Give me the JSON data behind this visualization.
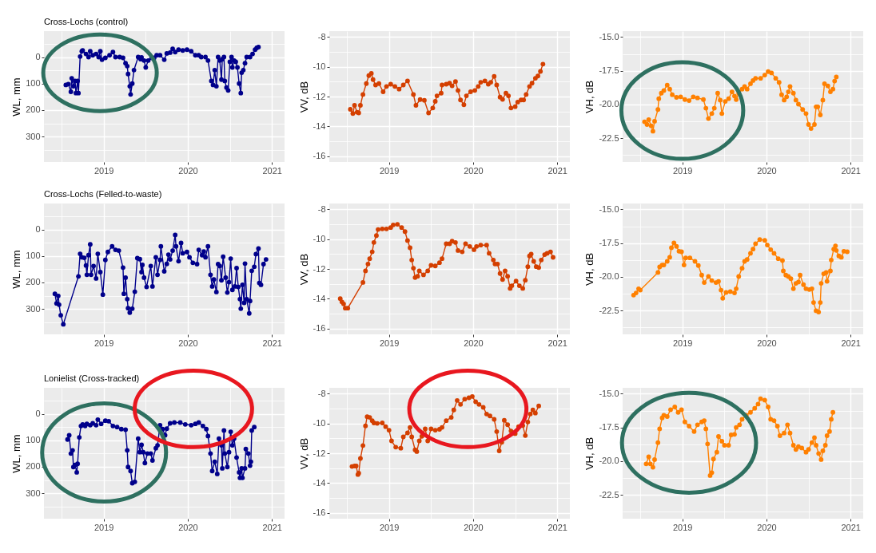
{
  "chart_data": [
    {
      "type": "line",
      "title": "Cross-Lochs (control)",
      "ylabel": "WL, mm",
      "marker": "circle",
      "line_style": "solid",
      "grid": true,
      "xlim": [
        2018.29,
        2021.15
      ],
      "xticks": [
        {
          "value": 2018.5,
          "label": null
        },
        2019,
        {
          "value": 2019.5,
          "label": null
        },
        2020,
        {
          "value": 2020.5,
          "label": null
        },
        2021
      ],
      "ylim": [
        396,
        -98
      ],
      "yticks": [
        {
          "value": -50,
          "label": null
        },
        0,
        {
          "value": 50,
          "label": null
        },
        100,
        {
          "value": 150,
          "label": null
        },
        200,
        {
          "value": 250,
          "label": null
        },
        300,
        {
          "value": 350,
          "label": null
        }
      ],
      "x": [
        2018.55,
        2018.58,
        2018.61,
        2018.62,
        2018.64,
        2018.66,
        2018.67,
        2018.69,
        2018.7,
        2018.72,
        2018.74,
        2018.75,
        2018.79,
        2018.82,
        2018.84,
        2018.87,
        2018.91,
        2018.94,
        2018.96,
        2018.98,
        2019.02,
        2019.07,
        2019.11,
        2019.14,
        2019.19,
        2019.23,
        2019.26,
        2019.28,
        2019.29,
        2019.31,
        2019.32,
        2019.34,
        2019.36,
        2019.41,
        2019.44,
        2019.45,
        2019.48,
        2019.5,
        2019.53,
        2019.57,
        2019.6,
        2019.63,
        2019.67,
        2019.72,
        2019.75,
        2019.79,
        2019.82,
        2019.85,
        2019.89,
        2019.94,
        2019.99,
        2020.04,
        2020.09,
        2020.13,
        2020.16,
        2020.21,
        2020.24,
        2020.28,
        2020.3,
        2020.32,
        2020.34,
        2020.36,
        2020.38,
        2020.4,
        2020.41,
        2020.43,
        2020.44,
        2020.46,
        2020.48,
        2020.5,
        2020.52,
        2020.53,
        2020.55,
        2020.57,
        2020.59,
        2020.61,
        2020.63,
        2020.64,
        2020.66,
        2020.68,
        2020.7,
        2020.74,
        2020.77,
        2020.8,
        2020.82,
        2020.84
      ],
      "series": [
        {
          "color": "#00008b",
          "values": [
            105,
            102,
            131,
            80,
            110,
            90,
            136,
            90,
            136,
            -2,
            -22,
            -25,
            -12,
            0,
            -22,
            -7,
            -12,
            0,
            -22,
            10,
            3,
            -7,
            -19,
            0,
            0,
            3,
            23,
            34,
            64,
            110,
            141,
            100,
            49,
            0,
            8,
            1,
            13,
            39,
            13,
            3,
            3,
            -7,
            -7,
            10,
            -14,
            -17,
            -31,
            -19,
            -28,
            -25,
            -28,
            -22,
            -7,
            -7,
            0,
            0,
            13,
            90,
            105,
            49,
            110,
            0,
            13,
            85,
            8,
            0,
            90,
            115,
            126,
            18,
            0,
            39,
            13,
            18,
            39,
            100,
            136,
            59,
            49,
            23,
            0,
            0,
            -12,
            -28,
            -35,
            -38
          ]
        }
      ]
    },
    {
      "type": "line",
      "ylabel": "VV, dB",
      "marker": "circle",
      "line_style": "solid",
      "grid": true,
      "xlim": [
        2018.29,
        2021.15
      ],
      "xticks": [
        {
          "value": 2018.5,
          "label": null
        },
        2019,
        {
          "value": 2019.5,
          "label": null
        },
        2020,
        {
          "value": 2020.5,
          "label": null
        },
        2021
      ],
      "ylim": [
        -16.4,
        -7.6
      ],
      "yticks": [
        -16,
        {
          "value": -15,
          "label": null
        },
        -14,
        {
          "value": -13,
          "label": null
        },
        -12,
        {
          "value": -11,
          "label": null
        },
        -10,
        {
          "value": -9,
          "label": null
        },
        -8
      ],
      "x": [
        2018.54,
        2018.57,
        2018.59,
        2018.62,
        2018.64,
        2018.66,
        2018.69,
        2018.73,
        2018.76,
        2018.79,
        2018.81,
        2018.84,
        2018.88,
        2018.93,
        2018.97,
        2019.02,
        2019.07,
        2019.12,
        2019.17,
        2019.22,
        2019.29,
        2019.32,
        2019.37,
        2019.42,
        2019.47,
        2019.52,
        2019.55,
        2019.57,
        2019.62,
        2019.63,
        2019.68,
        2019.72,
        2019.75,
        2019.79,
        2019.82,
        2019.85,
        2019.89,
        2019.92,
        2019.97,
        2020.02,
        2020.06,
        2020.09,
        2020.14,
        2020.18,
        2020.21,
        2020.25,
        2020.28,
        2020.32,
        2020.35,
        2020.39,
        2020.42,
        2020.45,
        2020.5,
        2020.53,
        2020.57,
        2020.6,
        2020.63,
        2020.67,
        2020.7,
        2020.74,
        2020.77,
        2020.8,
        2020.83
      ],
      "series": [
        {
          "color": "#d43f00",
          "values": [
            -12.86,
            -13.14,
            -12.59,
            -13.05,
            -13.1,
            -12.59,
            -11.86,
            -11.13,
            -10.59,
            -10.44,
            -10.86,
            -11.22,
            -11.13,
            -11.68,
            -11.32,
            -11.17,
            -11.32,
            -11.5,
            -11.22,
            -10.95,
            -11.86,
            -12.59,
            -12.2,
            -12.25,
            -13.1,
            -12.77,
            -12.32,
            -11.95,
            -11.77,
            -11.22,
            -11.17,
            -11.1,
            -11.28,
            -10.99,
            -11.59,
            -12.23,
            -12.55,
            -11.95,
            -11.68,
            -11.59,
            -11.32,
            -11.04,
            -10.95,
            -11.17,
            -11.04,
            -10.64,
            -11.22,
            -12.04,
            -12.19,
            -11.77,
            -11.95,
            -12.77,
            -12.68,
            -12.37,
            -12.23,
            -12.23,
            -11.86,
            -11.32,
            -11.1,
            -10.77,
            -10.62,
            -10.31,
            -9.82
          ]
        }
      ]
    },
    {
      "type": "line",
      "ylabel": "VH, dB",
      "marker": "circle",
      "line_style": "solid",
      "grid": true,
      "xlim": [
        2018.29,
        2021.15
      ],
      "xticks": [
        {
          "value": 2018.5,
          "label": null
        },
        2019,
        {
          "value": 2019.5,
          "label": null
        },
        2020,
        {
          "value": 2020.5,
          "label": null
        },
        2021
      ],
      "ylim": [
        -24.26,
        -14.56
      ],
      "yticks": [
        {
          "value": -23.75,
          "label": null
        },
        -22.5,
        {
          "value": -21.25,
          "label": null
        },
        {
          "value": -20,
          "label": "-20.0"
        },
        {
          "value": -18.75,
          "label": null
        },
        -17.5,
        {
          "value": -16.25,
          "label": null
        },
        {
          "value": -15,
          "label": "-15.0"
        }
      ],
      "x": [
        2018.55,
        2018.58,
        2018.6,
        2018.63,
        2018.65,
        2018.67,
        2018.71,
        2018.72,
        2018.75,
        2018.78,
        2018.82,
        2018.85,
        2018.88,
        2018.93,
        2018.98,
        2019.03,
        2019.08,
        2019.13,
        2019.18,
        2019.25,
        2019.28,
        2019.31,
        2019.35,
        2019.38,
        2019.42,
        2019.45,
        2019.47,
        2019.51,
        2019.55,
        2019.59,
        2019.62,
        2019.64,
        2019.67,
        2019.71,
        2019.74,
        2019.77,
        2019.81,
        2019.84,
        2019.87,
        2019.93,
        2019.98,
        2020.02,
        2020.06,
        2020.11,
        2020.15,
        2020.18,
        2020.21,
        2020.24,
        2020.26,
        2020.28,
        2020.32,
        2020.35,
        2020.38,
        2020.43,
        2020.47,
        2020.5,
        2020.53,
        2020.57,
        2020.59,
        2020.61,
        2020.64,
        2020.67,
        2020.69,
        2020.73,
        2020.76,
        2020.79,
        2020.81,
        2020.83
      ],
      "series": [
        {
          "color": "#ff8000",
          "values": [
            -21.28,
            -21.48,
            -21.12,
            -21.58,
            -21.98,
            -21.24,
            -20.37,
            -19.57,
            -19.16,
            -18.96,
            -18.56,
            -18.86,
            -19.27,
            -19.47,
            -19.43,
            -19.63,
            -19.71,
            -19.43,
            -19.51,
            -19.63,
            -20.27,
            -21.04,
            -20.67,
            -20.27,
            -19.16,
            -19.67,
            -20.67,
            -19.77,
            -19.57,
            -19.06,
            -19.37,
            -19.63,
            -19.16,
            -18.86,
            -18.66,
            -18.86,
            -18.46,
            -18.22,
            -18.06,
            -18.06,
            -17.82,
            -17.56,
            -17.66,
            -18.06,
            -18.36,
            -19.27,
            -19.67,
            -19.43,
            -19.06,
            -18.66,
            -19.16,
            -19.67,
            -19.97,
            -20.37,
            -20.67,
            -21.48,
            -21.78,
            -21.48,
            -20.17,
            -20.17,
            -20.77,
            -19.67,
            -18.46,
            -18.62,
            -19.06,
            -18.86,
            -18.26,
            -17.96
          ]
        }
      ]
    },
    {
      "type": "line",
      "title": "Cross-Lochs (Felled-to-waste)",
      "ylabel": "WL, mm",
      "marker": "circle",
      "line_style": "solid",
      "grid": true,
      "xlim": [
        2018.29,
        2021.15
      ],
      "xticks": [
        {
          "value": 2018.5,
          "label": null
        },
        2019,
        {
          "value": 2019.5,
          "label": null
        },
        2020,
        {
          "value": 2020.5,
          "label": null
        },
        2021
      ],
      "ylim": [
        396,
        -98
      ],
      "yticks": [
        {
          "value": -50,
          "label": null
        },
        0,
        {
          "value": 50,
          "label": null
        },
        100,
        {
          "value": 150,
          "label": null
        },
        200,
        {
          "value": 250,
          "label": null
        },
        300,
        {
          "value": 350,
          "label": null
        }
      ],
      "x": [
        2018.42,
        2018.44,
        2018.46,
        2018.47,
        2018.49,
        2018.52,
        2018.7,
        2018.72,
        2018.74,
        2018.77,
        2018.79,
        2018.8,
        2018.82,
        2018.84,
        2018.85,
        2018.88,
        2018.91,
        2018.93,
        2018.96,
        2018.99,
        2019.02,
        2019.05,
        2019.1,
        2019.14,
        2019.18,
        2019.23,
        2019.24,
        2019.26,
        2019.28,
        2019.29,
        2019.31,
        2019.34,
        2019.37,
        2019.4,
        2019.43,
        2019.45,
        2019.46,
        2019.48,
        2019.51,
        2019.56,
        2019.58,
        2019.62,
        2019.64,
        2019.67,
        2019.68,
        2019.72,
        2019.75,
        2019.77,
        2019.79,
        2019.82,
        2019.85,
        2019.86,
        2019.89,
        2019.92,
        2019.94,
        2019.99,
        2020.02,
        2020.06,
        2020.11,
        2020.13,
        2020.17,
        2020.19,
        2020.21,
        2020.24,
        2020.27,
        2020.29,
        2020.31,
        2020.34,
        2020.36,
        2020.38,
        2020.4,
        2020.42,
        2020.45,
        2020.47,
        2020.49,
        2020.51,
        2020.53,
        2020.56,
        2020.58,
        2020.6,
        2020.62,
        2020.63,
        2020.65,
        2020.67,
        2020.68,
        2020.7,
        2020.73,
        2020.74,
        2020.76,
        2020.79,
        2020.81,
        2020.84,
        2020.85,
        2020.87,
        2020.9,
        2020.93
      ],
      "series": [
        {
          "color": "#00008b",
          "values": [
            243,
            279,
            251,
            284,
            324,
            358,
            177,
            92,
            105,
            107,
            136,
            171,
            97,
            56,
            171,
            138,
            185,
            92,
            161,
            246,
            115,
            85,
            64,
            77,
            80,
            144,
            243,
            182,
            263,
            297,
            314,
            299,
            235,
            108,
            112,
            161,
            134,
            182,
            217,
            138,
            215,
            105,
            171,
            115,
            64,
            158,
            130,
            95,
            113,
            80,
            21,
            64,
            120,
            51,
            90,
            85,
            105,
            126,
            131,
            77,
            97,
            83,
            105,
            64,
            171,
            215,
            189,
            236,
            131,
            138,
            192,
            103,
            182,
            238,
            199,
            110,
            228,
            215,
            146,
            217,
            263,
            299,
            209,
            277,
            129,
            263,
            317,
            270,
            156,
            141,
            93,
            72,
            202,
            209,
            131,
            113
          ]
        }
      ]
    },
    {
      "type": "line",
      "ylabel": "VV, dB",
      "marker": "circle",
      "line_style": "solid",
      "grid": true,
      "xlim": [
        2018.29,
        2021.15
      ],
      "xticks": [
        {
          "value": 2018.5,
          "label": null
        },
        2019,
        {
          "value": 2019.5,
          "label": null
        },
        2020,
        {
          "value": 2020.5,
          "label": null
        },
        2021
      ],
      "ylim": [
        -16.4,
        -7.6
      ],
      "yticks": [
        -16,
        {
          "value": -15,
          "label": null
        },
        -14,
        {
          "value": -13,
          "label": null
        },
        -12,
        {
          "value": -11,
          "label": null
        },
        -10,
        {
          "value": -9,
          "label": null
        },
        -8
      ],
      "x": [
        2018.42,
        2018.44,
        2018.46,
        2018.48,
        2018.51,
        2018.69,
        2018.72,
        2018.75,
        2018.77,
        2018.8,
        2018.82,
        2018.85,
        2018.87,
        2018.92,
        2018.97,
        2019.02,
        2019.05,
        2019.1,
        2019.15,
        2019.19,
        2019.22,
        2019.25,
        2019.27,
        2019.29,
        2019.31,
        2019.34,
        2019.36,
        2019.41,
        2019.46,
        2019.5,
        2019.55,
        2019.6,
        2019.63,
        2019.68,
        2019.72,
        2019.75,
        2019.79,
        2019.82,
        2019.87,
        2019.91,
        2019.96,
        2020.01,
        2020.04,
        2020.09,
        2020.16,
        2020.19,
        2020.24,
        2020.26,
        2020.29,
        2020.32,
        2020.35,
        2020.38,
        2020.41,
        2020.44,
        2020.46,
        2020.51,
        2020.55,
        2020.59,
        2020.62,
        2020.65,
        2020.67,
        2020.69,
        2020.72,
        2020.75,
        2020.78,
        2020.81,
        2020.85,
        2020.88,
        2020.92,
        2020.95
      ],
      "series": [
        {
          "color": "#d43f00",
          "values": [
            -14.0,
            -14.22,
            -14.35,
            -14.64,
            -14.64,
            -12.91,
            -12.13,
            -11.67,
            -11.31,
            -10.85,
            -10.22,
            -9.76,
            -9.35,
            -9.31,
            -9.31,
            -9.22,
            -9.04,
            -9.0,
            -9.22,
            -9.49,
            -10.09,
            -10.58,
            -11.4,
            -11.95,
            -12.58,
            -12.49,
            -12.13,
            -12.4,
            -12.13,
            -11.76,
            -11.8,
            -11.58,
            -11.31,
            -10.31,
            -10.31,
            -10.13,
            -10.22,
            -10.76,
            -10.85,
            -10.31,
            -10.49,
            -10.71,
            -10.49,
            -10.4,
            -10.4,
            -10.95,
            -11.4,
            -11.67,
            -11.67,
            -12.31,
            -12.71,
            -12.13,
            -12.49,
            -13.31,
            -13.13,
            -12.82,
            -13.13,
            -13.31,
            -12.76,
            -11.85,
            -11.13,
            -11.0,
            -11.49,
            -11.85,
            -11.91,
            -11.4,
            -11.04,
            -10.95,
            -10.85,
            -11.22
          ]
        }
      ]
    },
    {
      "type": "line",
      "ylabel": "VH, dB",
      "marker": "circle",
      "line_style": "solid",
      "grid": true,
      "xlim": [
        2018.29,
        2021.15
      ],
      "xticks": [
        {
          "value": 2018.5,
          "label": null
        },
        2019,
        {
          "value": 2019.5,
          "label": null
        },
        2020,
        {
          "value": 2020.5,
          "label": null
        },
        2021
      ],
      "ylim": [
        -24.26,
        -14.56
      ],
      "yticks": [
        {
          "value": -23.75,
          "label": null
        },
        -22.5,
        {
          "value": -21.25,
          "label": null
        },
        {
          "value": -20,
          "label": "-20.0"
        },
        {
          "value": -18.75,
          "label": null
        },
        -17.5,
        {
          "value": -16.25,
          "label": null
        },
        {
          "value": -15,
          "label": "-15.0"
        }
      ],
      "x": [
        2018.42,
        2018.45,
        2018.48,
        2018.5,
        2018.71,
        2018.73,
        2018.76,
        2018.78,
        2018.82,
        2018.85,
        2018.87,
        2018.9,
        2018.93,
        2018.96,
        2018.99,
        2019.02,
        2019.04,
        2019.09,
        2019.15,
        2019.19,
        2019.23,
        2019.26,
        2019.31,
        2019.35,
        2019.4,
        2019.43,
        2019.46,
        2019.48,
        2019.52,
        2019.57,
        2019.62,
        2019.64,
        2019.67,
        2019.71,
        2019.74,
        2019.77,
        2019.81,
        2019.84,
        2019.87,
        2019.92,
        2019.98,
        2020.01,
        2020.05,
        2020.09,
        2020.14,
        2020.19,
        2020.2,
        2020.23,
        2020.26,
        2020.29,
        2020.32,
        2020.35,
        2020.38,
        2020.4,
        2020.44,
        2020.47,
        2020.51,
        2020.54,
        2020.56,
        2020.59,
        2020.62,
        2020.64,
        2020.65,
        2020.68,
        2020.71,
        2020.72,
        2020.76,
        2020.77,
        2020.8,
        2020.82,
        2020.83,
        2020.86,
        2020.89,
        2020.92,
        2020.96
      ],
      "series": [
        {
          "color": "#ff8000",
          "values": [
            -21.35,
            -21.19,
            -20.88,
            -20.98,
            -19.67,
            -19.26,
            -19.12,
            -19.12,
            -18.85,
            -18.55,
            -17.84,
            -17.49,
            -17.74,
            -18.1,
            -18.14,
            -19.12,
            -18.59,
            -18.59,
            -18.85,
            -19.16,
            -19.87,
            -20.42,
            -19.97,
            -20.27,
            -20.42,
            -20.33,
            -20.98,
            -21.59,
            -21.15,
            -21.09,
            -21.19,
            -20.88,
            -19.97,
            -19.36,
            -18.85,
            -18.71,
            -18.25,
            -17.94,
            -17.54,
            -17.23,
            -17.29,
            -17.64,
            -17.98,
            -18.25,
            -18.65,
            -18.79,
            -19.56,
            -19.87,
            -19.97,
            -20.13,
            -20.88,
            -20.48,
            -20.38,
            -19.87,
            -20.58,
            -20.88,
            -20.94,
            -20.88,
            -21.9,
            -22.51,
            -22.61,
            -21.9,
            -20.48,
            -19.77,
            -19.67,
            -20.33,
            -19.56,
            -18.75,
            -17.94,
            -17.7,
            -18.04,
            -18.45,
            -18.55,
            -18.1,
            -18.14
          ]
        }
      ]
    },
    {
      "type": "line",
      "title": "Lonielist (Cross-tracked)",
      "ylabel": "WL, mm",
      "marker": "circle",
      "line_style": "solid",
      "grid": true,
      "xlim": [
        2018.29,
        2021.15
      ],
      "xticks": [
        {
          "value": 2018.5,
          "label": null
        },
        2019,
        {
          "value": 2019.5,
          "label": null
        },
        2020,
        {
          "value": 2020.5,
          "label": null
        },
        2021
      ],
      "ylim": [
        396,
        -98
      ],
      "yticks": [
        {
          "value": -50,
          "label": null
        },
        0,
        {
          "value": 50,
          "label": null
        },
        100,
        {
          "value": 150,
          "label": null
        },
        200,
        {
          "value": 250,
          "label": null
        },
        300,
        {
          "value": 350,
          "label": null
        }
      ],
      "x": [
        2018.57,
        2018.59,
        2018.61,
        2018.63,
        2018.64,
        2018.66,
        2018.68,
        2018.69,
        2018.71,
        2018.73,
        2018.75,
        2018.78,
        2018.8,
        2018.84,
        2018.87,
        2018.91,
        2018.93,
        2018.97,
        2019.02,
        2019.06,
        2019.11,
        2019.16,
        2019.21,
        2019.26,
        2019.28,
        2019.29,
        2019.32,
        2019.34,
        2019.37,
        2019.41,
        2019.43,
        2019.45,
        2019.47,
        2019.49,
        2019.52,
        2019.56,
        2019.58,
        2019.62,
        2019.64,
        2019.67,
        2019.7,
        2019.73,
        2019.75,
        2019.79,
        2019.84,
        2019.91,
        2019.97,
        2020.04,
        2020.09,
        2020.13,
        2020.18,
        2020.22,
        2020.24,
        2020.27,
        2020.29,
        2020.32,
        2020.35,
        2020.37,
        2020.4,
        2020.41,
        2020.43,
        2020.44,
        2020.47,
        2020.49,
        2020.51,
        2020.53,
        2020.55,
        2020.58,
        2020.61,
        2020.62,
        2020.64,
        2020.65,
        2020.68,
        2020.69,
        2020.72,
        2020.74,
        2020.75,
        2020.76,
        2020.79
      ],
      "series": [
        {
          "color": "#00008b",
          "values": [
            97,
            81,
            150,
            138,
            201,
            193,
            221,
            189,
            89,
            46,
            40,
            46,
            38,
            43,
            36,
            43,
            22,
            38,
            26,
            28,
            46,
            50,
            58,
            60,
            138,
            201,
            216,
            262,
            257,
            94,
            145,
            117,
            145,
            186,
            150,
            150,
            176,
            130,
            119,
            43,
            58,
            81,
            56,
            36,
            33,
            33,
            40,
            43,
            38,
            33,
            46,
            58,
            84,
            150,
            216,
            181,
            227,
            94,
            119,
            206,
            63,
            150,
            201,
            145,
            68,
            119,
            94,
            165,
            221,
            242,
            206,
            242,
            206,
            133,
            150,
            196,
            181,
            63,
            50
          ]
        }
      ]
    },
    {
      "type": "line",
      "ylabel": "VV, dB",
      "marker": "circle",
      "line_style": "solid",
      "grid": true,
      "xlim": [
        2018.29,
        2021.15
      ],
      "xticks": [
        {
          "value": 2018.5,
          "label": null
        },
        2019,
        {
          "value": 2019.5,
          "label": null
        },
        2020,
        {
          "value": 2020.5,
          "label": null
        },
        2021
      ],
      "ylim": [
        -16.4,
        -7.6
      ],
      "yticks": [
        -16,
        {
          "value": -15,
          "label": null
        },
        -14,
        {
          "value": -13,
          "label": null
        },
        -12,
        {
          "value": -11,
          "label": null
        },
        -10,
        {
          "value": -9,
          "label": null
        },
        -8
      ],
      "x": [
        2018.56,
        2018.59,
        2018.61,
        2018.63,
        2018.64,
        2018.66,
        2018.69,
        2018.72,
        2018.74,
        2018.77,
        2018.8,
        2018.82,
        2018.86,
        2018.92,
        2018.96,
        2019.0,
        2019.03,
        2019.08,
        2019.14,
        2019.17,
        2019.22,
        2019.25,
        2019.27,
        2019.31,
        2019.33,
        2019.36,
        2019.39,
        2019.43,
        2019.46,
        2019.5,
        2019.55,
        2019.6,
        2019.63,
        2019.68,
        2019.74,
        2019.77,
        2019.81,
        2019.85,
        2019.9,
        2019.95,
        2019.99,
        2020.03,
        2020.07,
        2020.12,
        2020.16,
        2020.2,
        2020.25,
        2020.28,
        2020.31,
        2020.34,
        2020.37,
        2020.41,
        2020.45,
        2020.5,
        2020.54,
        2020.59,
        2020.62,
        2020.65,
        2020.68,
        2020.71,
        2020.74,
        2020.78
      ],
      "series": [
        {
          "color": "#d43f00",
          "values": [
            -12.89,
            -12.86,
            -12.86,
            -13.43,
            -13.34,
            -12.35,
            -11.48,
            -10.16,
            -9.54,
            -9.59,
            -9.81,
            -9.96,
            -9.99,
            -9.96,
            -10.21,
            -10.45,
            -11.17,
            -11.59,
            -11.66,
            -10.9,
            -10.63,
            -10.26,
            -10.9,
            -11.77,
            -11.89,
            -11.17,
            -10.86,
            -10.36,
            -11.17,
            -10.36,
            -10.45,
            -10.39,
            -10.26,
            -9.81,
            -9.59,
            -9.09,
            -8.45,
            -8.72,
            -8.36,
            -8.27,
            -8.18,
            -8.54,
            -8.72,
            -8.91,
            -9.36,
            -9.49,
            -9.72,
            -10.54,
            -11.84,
            -11.26,
            -9.78,
            -10.08,
            -10.5,
            -10.68,
            -10.21,
            -10.14,
            -10.81,
            -9.9,
            -9.36,
            -9.09,
            -9.3,
            -8.82
          ]
        }
      ]
    },
    {
      "type": "line",
      "ylabel": "VH, dB",
      "marker": "circle",
      "line_style": "solid",
      "grid": true,
      "xlim": [
        2018.29,
        2021.15
      ],
      "xticks": [
        {
          "value": 2018.5,
          "label": null
        },
        2019,
        {
          "value": 2019.5,
          "label": null
        },
        2020,
        {
          "value": 2020.5,
          "label": null
        },
        2021
      ],
      "ylim": [
        -24.26,
        -14.56
      ],
      "yticks": [
        {
          "value": -23.75,
          "label": null
        },
        -22.5,
        {
          "value": -21.25,
          "label": null
        },
        {
          "value": -20,
          "label": "-20.0"
        },
        {
          "value": -18.75,
          "label": null
        },
        -17.5,
        {
          "value": -16.25,
          "label": null
        },
        {
          "value": -15,
          "label": "-15.0"
        }
      ],
      "x": [
        2018.57,
        2018.6,
        2018.62,
        2018.65,
        2018.67,
        2018.71,
        2018.73,
        2018.76,
        2018.78,
        2018.82,
        2018.86,
        2018.91,
        2018.95,
        2018.99,
        2019.03,
        2019.08,
        2019.14,
        2019.18,
        2019.23,
        2019.26,
        2019.28,
        2019.3,
        2019.33,
        2019.35,
        2019.37,
        2019.41,
        2019.43,
        2019.47,
        2019.5,
        2019.55,
        2019.58,
        2019.62,
        2019.64,
        2019.68,
        2019.71,
        2019.76,
        2019.81,
        2019.86,
        2019.9,
        2019.93,
        2019.98,
        2020.02,
        2020.05,
        2020.09,
        2020.13,
        2020.16,
        2020.21,
        2020.25,
        2020.28,
        2020.32,
        2020.35,
        2020.38,
        2020.42,
        2020.47,
        2020.5,
        2020.54,
        2020.57,
        2020.59,
        2020.62,
        2020.65,
        2020.67,
        2020.7,
        2020.72,
        2020.75,
        2020.77,
        2020.79
      ],
      "series": [
        {
          "color": "#ff8000",
          "values": [
            -20.2,
            -19.67,
            -20.2,
            -20.45,
            -19.88,
            -18.62,
            -17.6,
            -16.79,
            -16.59,
            -16.69,
            -16.18,
            -15.98,
            -16.38,
            -16.18,
            -17.09,
            -17.4,
            -17.8,
            -17.3,
            -17.09,
            -16.99,
            -17.6,
            -18.72,
            -21.06,
            -20.85,
            -19.84,
            -19.33,
            -18.17,
            -18.52,
            -18.82,
            -18.82,
            -18.05,
            -18.01,
            -17.5,
            -17.3,
            -16.89,
            -16.59,
            -16.38,
            -16.08,
            -15.77,
            -15.37,
            -15.47,
            -15.98,
            -16.89,
            -16.99,
            -17.4,
            -18.11,
            -17.91,
            -17.3,
            -17.91,
            -18.82,
            -19.13,
            -18.92,
            -19.02,
            -19.33,
            -19.13,
            -18.62,
            -18.25,
            -18.82,
            -19.43,
            -19.88,
            -19.23,
            -18.82,
            -18.11,
            -17.8,
            -16.89,
            -16.38
          ]
        }
      ]
    }
  ]
}
